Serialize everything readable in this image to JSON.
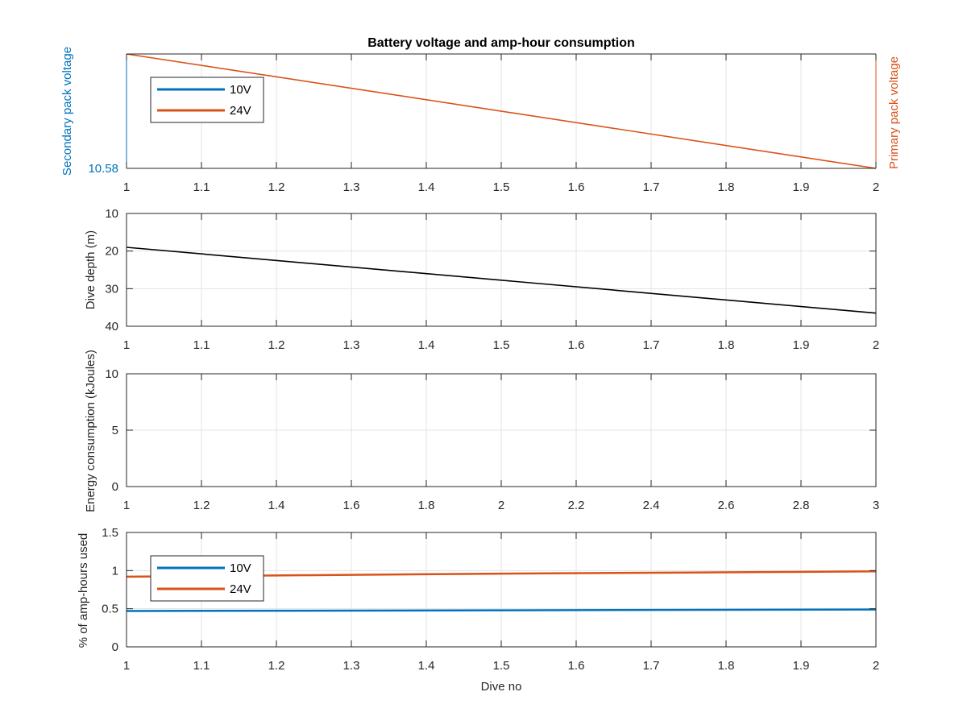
{
  "chart_data": [
    {
      "type": "line",
      "title": "Battery voltage and amp-hour consumption",
      "ylabel_left": "Secondary pack voltage",
      "ylabel_right": "Primary pack voltage",
      "xlabel": "",
      "xlim": [
        1,
        2
      ],
      "xticks": [
        1,
        1.1,
        1.2,
        1.3,
        1.4,
        1.5,
        1.6,
        1.7,
        1.8,
        1.9,
        2
      ],
      "ylim": [
        0,
        1
      ],
      "yticks_left": [
        {
          "value": 0,
          "label": "10.58"
        }
      ],
      "grid": true,
      "legend": {
        "position": "top-left",
        "entries": [
          "10V",
          "24V"
        ]
      },
      "series": [
        {
          "name": "24V",
          "color": "#d95319",
          "x": [
            1,
            2
          ],
          "y": [
            1,
            0
          ]
        }
      ]
    },
    {
      "type": "line",
      "title": "",
      "ylabel": "Dive depth (m)",
      "xlabel": "",
      "xlim": [
        1,
        2
      ],
      "xticks": [
        1,
        1.1,
        1.2,
        1.3,
        1.4,
        1.5,
        1.6,
        1.7,
        1.8,
        1.9,
        2
      ],
      "ylim": [
        10,
        40
      ],
      "y_reversed": true,
      "yticks": [
        10,
        20,
        30,
        40
      ],
      "grid": true,
      "series": [
        {
          "color": "#000000",
          "x": [
            1,
            2
          ],
          "y": [
            19,
            36.5
          ]
        }
      ]
    },
    {
      "type": "line",
      "title": "",
      "ylabel": "Energy consumption (kJoules)",
      "xlabel": "",
      "xlim": [
        1,
        3
      ],
      "xticks": [
        1,
        1.2,
        1.4,
        1.6,
        1.8,
        2,
        2.2,
        2.4,
        2.6,
        2.8,
        3
      ],
      "ylim": [
        0,
        10
      ],
      "yticks": [
        0,
        5,
        10
      ],
      "grid": true,
      "series": []
    },
    {
      "type": "line",
      "title": "",
      "ylabel": "% of amp-hours used",
      "xlabel": "Dive no",
      "xlim": [
        1,
        2
      ],
      "xticks": [
        1,
        1.1,
        1.2,
        1.3,
        1.4,
        1.5,
        1.6,
        1.7,
        1.8,
        1.9,
        2
      ],
      "ylim": [
        0,
        1.5
      ],
      "yticks": [
        0,
        0.5,
        1,
        1.5
      ],
      "grid": true,
      "legend": {
        "position": "top-left",
        "entries": [
          "10V",
          "24V"
        ]
      },
      "series": [
        {
          "name": "10V",
          "color": "#0072bd",
          "x": [
            1,
            1.5,
            2
          ],
          "y": [
            0.47,
            0.48,
            0.49
          ]
        },
        {
          "name": "24V",
          "color": "#d95319",
          "x": [
            1,
            1.25,
            1.5,
            1.75,
            2
          ],
          "y": [
            0.92,
            0.94,
            0.96,
            0.975,
            0.99
          ]
        }
      ]
    }
  ]
}
